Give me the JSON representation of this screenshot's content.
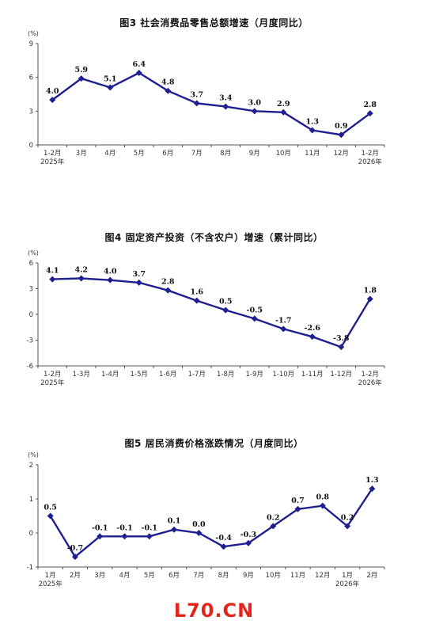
{
  "watermark": "L70.CN",
  "chart_data": [
    {
      "type": "line",
      "title": "图3   社会消费品零售总额增速（月度同比）",
      "unit": "(%)",
      "ylim": [
        0,
        9
      ],
      "yticks": [
        0,
        3,
        6,
        9
      ],
      "categories": [
        "1-2月",
        "3月",
        "4月",
        "5月",
        "6月",
        "7月",
        "8月",
        "9月",
        "10月",
        "11月",
        "12月",
        "1-2月"
      ],
      "year_labels": [
        {
          "index": 0,
          "text": "2025年"
        },
        {
          "index": 11,
          "text": "2026年"
        }
      ],
      "series": [
        {
          "values": [
            4.0,
            5.9,
            5.1,
            6.4,
            4.8,
            3.7,
            3.4,
            3.0,
            2.9,
            1.3,
            0.9,
            2.8
          ]
        }
      ],
      "value_labels": [
        "4.0",
        "5.9",
        "5.1",
        "6.4",
        "4.8",
        "3.7",
        "3.4",
        "3.0",
        "2.9",
        "1.3",
        "0.9",
        "2.8"
      ],
      "color": "#1f1f8f",
      "grid": false
    },
    {
      "type": "line",
      "title": "图4   固定资产投资（不含农户）增速（累计同比）",
      "unit": "(%)",
      "ylim": [
        -6,
        6
      ],
      "yticks": [
        -6,
        -3,
        0,
        3,
        6
      ],
      "categories": [
        "1-2月",
        "1-3月",
        "1-4月",
        "1-5月",
        "1-6月",
        "1-7月",
        "1-8月",
        "1-9月",
        "1-10月",
        "1-11月",
        "1-12月",
        "1-2月"
      ],
      "year_labels": [
        {
          "index": 0,
          "text": "2025年"
        },
        {
          "index": 11,
          "text": "2026年"
        }
      ],
      "series": [
        {
          "values": [
            4.1,
            4.2,
            4.0,
            3.7,
            2.8,
            1.6,
            0.5,
            -0.5,
            -1.7,
            -2.6,
            -3.8,
            1.8
          ]
        }
      ],
      "value_labels": [
        "4.1",
        "4.2",
        "4.0",
        "3.7",
        "2.8",
        "1.6",
        "0.5",
        "-0.5",
        "-1.7",
        "-2.6",
        "-3.8",
        "1.8"
      ],
      "color": "#1f1f8f",
      "grid": false
    },
    {
      "type": "line",
      "title": "图5   居民消费价格涨跌情况（月度同比）",
      "unit": "(%)",
      "ylim": [
        -1,
        2
      ],
      "yticks": [
        -1,
        0,
        1,
        2
      ],
      "categories": [
        "1月",
        "2月",
        "3月",
        "4月",
        "5月",
        "6月",
        "7月",
        "8月",
        "9月",
        "10月",
        "11月",
        "12月",
        "1月",
        "2月"
      ],
      "year_labels": [
        {
          "index": 0,
          "text": "2025年"
        },
        {
          "index": 12,
          "text": "2026年"
        }
      ],
      "series": [
        {
          "values": [
            0.5,
            -0.7,
            -0.1,
            -0.1,
            -0.1,
            0.1,
            0.0,
            -0.4,
            -0.3,
            0.2,
            0.7,
            0.8,
            0.2,
            1.3
          ]
        }
      ],
      "value_labels": [
        "0.5",
        "-0.7",
        "-0.1",
        "-0.1",
        "-0.1",
        "0.1",
        "0.0",
        "-0.4",
        "-0.3",
        "0.2",
        "0.7",
        "0.8",
        "0.2",
        "1.3"
      ],
      "color": "#1f1f8f",
      "grid": false
    }
  ]
}
